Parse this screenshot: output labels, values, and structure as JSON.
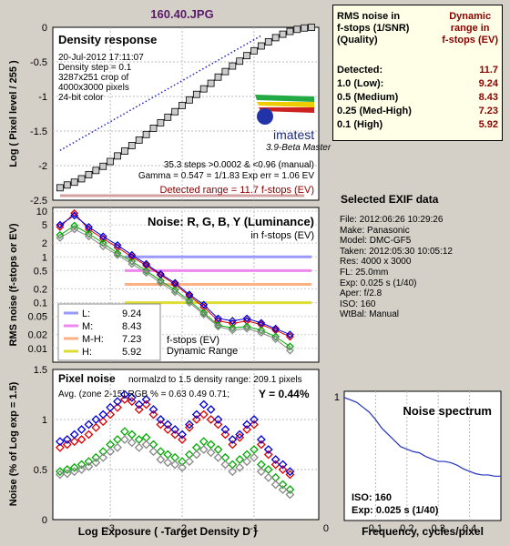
{
  "file_title": "160.40.JPG",
  "density": {
    "title": "Density response",
    "info_lines": [
      "20-Jul-2012 17:11:07",
      "Density step = 0.1",
      "3287x251 crop of",
      "4000x3000 pixels",
      "24-bit color"
    ],
    "logo_text": "imatest",
    "logo_sub": "3.9-Beta  Master",
    "steps_text": "35.3 steps >0.0002 & <0.96 (manual)",
    "gamma_text": "Gamma = 0.547 = 1/1.83  Exp err = 1.06 EV",
    "detected_range": "Detected range = 11.7 f-stops (EV)",
    "ylabel": "Log ( Pixel level / 255 )",
    "yticks": [
      "0",
      "-0.5",
      "-1",
      "-1.5",
      "-2",
      "-2.5"
    ]
  },
  "rms": {
    "h1": [
      "RMS noise in",
      "f-stops (1/SNR)",
      "(Quality)"
    ],
    "h2": [
      "Dynamic",
      "range in",
      "f-stops (EV)"
    ],
    "rows": [
      {
        "label": "Detected:",
        "value": "11.7"
      },
      {
        "label": "1.0   (Low):",
        "value": "9.24"
      },
      {
        "label": "0.5   (Medium)",
        "value": "8.43"
      },
      {
        "label": "0.25 (Med-High)",
        "value": "7.23"
      },
      {
        "label": "0.1   (High)",
        "value": "5.92"
      }
    ]
  },
  "noise_fstops": {
    "title": "Noise: R, G, B, Y (Luminance)",
    "sub": "in f-stops (EV)",
    "ylabel": "RMS noise (f-stops or EV)",
    "yticks": [
      "10",
      "5",
      "2",
      "1",
      "0.5",
      "0.2",
      "0.1",
      "0.05",
      "0.02",
      "0.01"
    ],
    "legend": [
      {
        "key": "L:",
        "value": "9.24",
        "color": "#9999ff"
      },
      {
        "key": "M:",
        "value": "8.43",
        "color": "#ee88ee"
      },
      {
        "key": "M-H:",
        "value": "7.23",
        "color": "#ffb080"
      },
      {
        "key": "H:",
        "value": "5.92",
        "color": "#dddd33"
      }
    ],
    "legend_caption": [
      "f-stops (EV)",
      "Dynamic Range"
    ]
  },
  "pixel_noise": {
    "title": "Pixel noise",
    "norm_text": "normalzd to 1.5 density range: 209.1 pixels",
    "avg_text": "Avg. (zone 2-15) RGB % = 0.63  0.49  0.71;",
    "y_text": "Y = 0.44%",
    "ylabel": "Noise (% of Log exp = 1.5)",
    "xlabel": "Log Exposure ( -Target Density D )",
    "yticks": [
      "1.5",
      "1",
      "0.5",
      "0"
    ],
    "xticks": [
      "-3",
      "-2",
      "-1",
      "0"
    ]
  },
  "spectrum": {
    "title": "Noise spectrum",
    "ytick": "1",
    "xlabel": "Frequency, cycles/pixel",
    "xticks": [
      "0.1",
      "0.2",
      "0.3",
      "0.4"
    ],
    "iso_text": "ISO:    160",
    "exp_text": "Exp:    0.025 s    (1/40)"
  },
  "exif": {
    "title": "Selected EXIF data",
    "lines": [
      "File:  2012:06:26 10:29:26",
      "Make:  Panasonic",
      "Model: DMC-GF5",
      "Taken:  2012:05:30 10:05:12",
      "Res:    4000 x 3000",
      "FL:  25.0mm",
      "Exp:  0.025 s   (1/40)",
      "Aper:  f/2.8",
      "ISO:  160",
      "WtBal: Manual"
    ]
  },
  "chart_data": [
    {
      "type": "line",
      "title": "Density response",
      "xlabel": "",
      "ylabel": "Log ( Pixel level / 255 )",
      "ylim": [
        -2.5,
        0
      ],
      "xlim": [
        -3.8,
        -0.1
      ],
      "series": [
        {
          "x": [
            -3.7,
            -3.6,
            -3.5,
            -3.4,
            -3.3,
            -3.2,
            -3.1,
            -3.0,
            -2.9,
            -2.8,
            -2.7,
            -2.6,
            -2.5,
            -2.4,
            -2.3,
            -2.2,
            -2.1,
            -2.0,
            -1.9,
            -1.8,
            -1.7,
            -1.6,
            -1.5,
            -1.4,
            -1.3,
            -1.2,
            -1.1,
            -1.0,
            -0.9,
            -0.8,
            -0.7,
            -0.6,
            -0.5,
            -0.4,
            -0.3,
            -0.2
          ],
          "y": [
            -2.32,
            -2.28,
            -2.24,
            -2.19,
            -2.13,
            -2.07,
            -2.01,
            -1.94,
            -1.86,
            -1.79,
            -1.71,
            -1.63,
            -1.55,
            -1.46,
            -1.38,
            -1.3,
            -1.22,
            -1.13,
            -1.05,
            -0.97,
            -0.89,
            -0.81,
            -0.72,
            -0.64,
            -0.56,
            -0.49,
            -0.41,
            -0.34,
            -0.27,
            -0.21,
            -0.15,
            -0.1,
            -0.06,
            -0.03,
            -0.01,
            0.0
          ]
        },
        {
          "x": [
            -3.7,
            -0.9
          ],
          "y": [
            -1.78,
            -0.12
          ]
        }
      ]
    },
    {
      "type": "line",
      "title": "Noise: R, G, B, Y (Luminance)",
      "ylabel": "RMS noise (f-stops or EV)",
      "yscale": "log",
      "ylim": [
        0.005,
        12
      ],
      "xlim": [
        -3.8,
        -0.1
      ],
      "series": [
        {
          "name": "R",
          "x": [
            -3.7,
            -3.5,
            -3.3,
            -3.1,
            -2.9,
            -2.7,
            -2.5,
            -2.3,
            -2.1,
            -1.9,
            -1.7,
            -1.5,
            -1.3,
            -1.1,
            -0.9,
            -0.7,
            -0.5
          ],
          "y": [
            4.5,
            9.0,
            4.0,
            2.5,
            1.6,
            1.0,
            0.65,
            0.4,
            0.25,
            0.14,
            0.08,
            0.04,
            0.035,
            0.04,
            0.033,
            0.025,
            0.018
          ]
        },
        {
          "name": "G",
          "x": [
            -3.7,
            -3.5,
            -3.3,
            -3.1,
            -2.9,
            -2.7,
            -2.5,
            -2.3,
            -2.1,
            -1.9,
            -1.7,
            -1.5,
            -1.3,
            -1.1,
            -0.9,
            -0.7,
            -0.5
          ],
          "y": [
            3.0,
            4.8,
            3.2,
            2.0,
            1.2,
            0.8,
            0.5,
            0.3,
            0.19,
            0.11,
            0.06,
            0.032,
            0.028,
            0.03,
            0.025,
            0.018,
            0.011
          ]
        },
        {
          "name": "B",
          "x": [
            -3.7,
            -3.5,
            -3.3,
            -3.1,
            -2.9,
            -2.7,
            -2.5,
            -2.3,
            -2.1,
            -1.9,
            -1.7,
            -1.5,
            -1.3,
            -1.1,
            -0.9,
            -0.7,
            -0.5
          ],
          "y": [
            5.0,
            8.0,
            4.5,
            2.8,
            1.8,
            1.1,
            0.7,
            0.42,
            0.27,
            0.15,
            0.09,
            0.045,
            0.04,
            0.045,
            0.036,
            0.027,
            0.02
          ]
        },
        {
          "name": "Y",
          "x": [
            -3.7,
            -3.5,
            -3.3,
            -3.1,
            -2.9,
            -2.7,
            -2.5,
            -2.3,
            -2.1,
            -1.9,
            -1.7,
            -1.5,
            -1.3,
            -1.1,
            -0.9,
            -0.7,
            -0.5
          ],
          "y": [
            2.6,
            4.0,
            2.8,
            1.7,
            1.1,
            0.7,
            0.45,
            0.27,
            0.17,
            0.1,
            0.055,
            0.03,
            0.025,
            0.027,
            0.022,
            0.016,
            0.009
          ]
        }
      ],
      "hlines": [
        {
          "name": "L",
          "y": 1.0,
          "color": "#9999ff"
        },
        {
          "name": "M",
          "y": 0.5,
          "color": "#ee88ee"
        },
        {
          "name": "M-H",
          "y": 0.25,
          "color": "#ffb080"
        },
        {
          "name": "H",
          "y": 0.1,
          "color": "#dddd33"
        }
      ]
    },
    {
      "type": "scatter",
      "title": "Pixel noise",
      "xlabel": "Log Exposure ( -Target Density D )",
      "ylabel": "Noise (% of Log exp = 1.5)",
      "xlim": [
        -3.8,
        -0.1
      ],
      "ylim": [
        0,
        1.5
      ],
      "x": [
        -3.7,
        -3.6,
        -3.5,
        -3.4,
        -3.3,
        -3.2,
        -3.1,
        -3.0,
        -2.9,
        -2.8,
        -2.7,
        -2.6,
        -2.5,
        -2.4,
        -2.3,
        -2.2,
        -2.1,
        -2.0,
        -1.9,
        -1.8,
        -1.7,
        -1.6,
        -1.5,
        -1.4,
        -1.3,
        -1.2,
        -1.1,
        -1.0,
        -0.9,
        -0.8,
        -0.7,
        -0.6,
        -0.5
      ],
      "series": [
        {
          "name": "R",
          "values": [
            0.72,
            0.75,
            0.78,
            0.8,
            0.85,
            0.92,
            0.98,
            1.05,
            1.12,
            1.2,
            1.18,
            1.1,
            1.15,
            1.05,
            0.95,
            0.9,
            0.85,
            0.8,
            0.92,
            1.0,
            1.05,
            1.0,
            0.95,
            0.85,
            0.75,
            0.82,
            0.9,
            0.95,
            0.75,
            0.65,
            0.55,
            0.5,
            0.45
          ]
        },
        {
          "name": "G",
          "values": [
            0.48,
            0.5,
            0.52,
            0.55,
            0.58,
            0.62,
            0.68,
            0.75,
            0.8,
            0.88,
            0.85,
            0.8,
            0.82,
            0.75,
            0.68,
            0.65,
            0.62,
            0.58,
            0.65,
            0.72,
            0.78,
            0.75,
            0.7,
            0.62,
            0.55,
            0.6,
            0.65,
            0.7,
            0.55,
            0.5,
            0.42,
            0.35,
            0.3
          ]
        },
        {
          "name": "B",
          "values": [
            0.78,
            0.8,
            0.85,
            0.9,
            0.95,
            1.0,
            1.05,
            1.12,
            1.18,
            1.25,
            1.22,
            1.15,
            1.2,
            1.1,
            1.0,
            0.95,
            0.9,
            0.85,
            0.95,
            1.05,
            1.15,
            1.1,
            1.0,
            0.9,
            0.8,
            0.85,
            0.95,
            1.0,
            0.8,
            0.7,
            0.6,
            0.55,
            0.48
          ]
        },
        {
          "name": "Y",
          "values": [
            0.45,
            0.46,
            0.48,
            0.5,
            0.53,
            0.57,
            0.62,
            0.68,
            0.72,
            0.8,
            0.77,
            0.72,
            0.75,
            0.68,
            0.6,
            0.57,
            0.55,
            0.52,
            0.58,
            0.65,
            0.7,
            0.67,
            0.62,
            0.55,
            0.48,
            0.52,
            0.58,
            0.62,
            0.48,
            0.42,
            0.35,
            0.3,
            0.25
          ]
        }
      ]
    },
    {
      "type": "line",
      "title": "Noise spectrum",
      "xlabel": "Frequency, cycles/pixel",
      "xlim": [
        0,
        0.5
      ],
      "ylim": [
        0,
        1.05
      ],
      "x": [
        0.0,
        0.02,
        0.04,
        0.06,
        0.08,
        0.1,
        0.12,
        0.14,
        0.16,
        0.18,
        0.2,
        0.22,
        0.24,
        0.26,
        0.28,
        0.3,
        0.32,
        0.34,
        0.36,
        0.38,
        0.4,
        0.42,
        0.44,
        0.46,
        0.48,
        0.5
      ],
      "values": [
        1.0,
        0.98,
        0.96,
        0.92,
        0.88,
        0.82,
        0.75,
        0.7,
        0.65,
        0.6,
        0.58,
        0.56,
        0.55,
        0.52,
        0.5,
        0.48,
        0.48,
        0.47,
        0.45,
        0.42,
        0.4,
        0.38,
        0.37,
        0.37,
        0.36,
        0.36
      ]
    }
  ]
}
